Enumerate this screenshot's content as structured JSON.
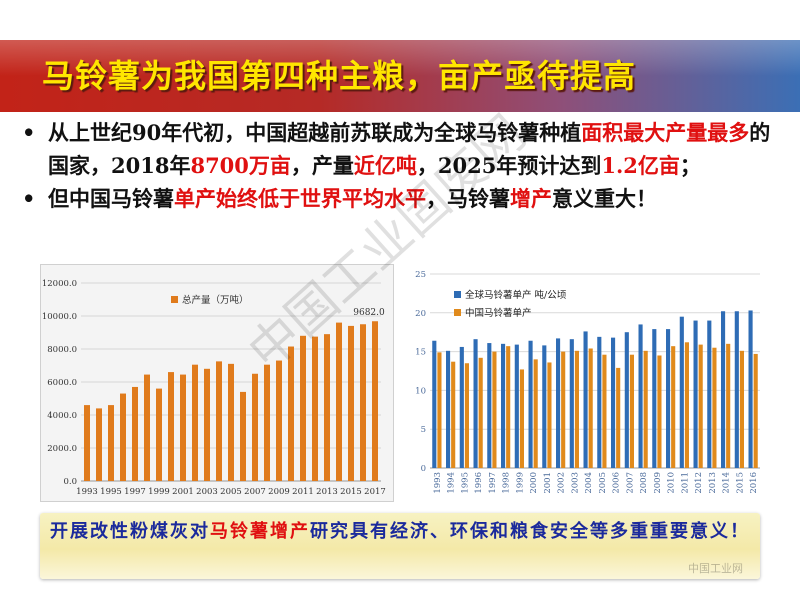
{
  "title": "马铃薯为我国第四种主粮，亩产亟待提高",
  "bullets": [
    {
      "dot": "•",
      "segments": [
        {
          "text": "从上世纪90年代初，中国超越前苏联成为全球马铃薯种植",
          "red": false
        },
        {
          "text": "面积最大产量最多",
          "red": true
        },
        {
          "text": "的国家，2018年",
          "red": false
        },
        {
          "text": "8700万亩",
          "red": true
        },
        {
          "text": "，产量",
          "red": false
        },
        {
          "text": "近亿吨",
          "red": true
        },
        {
          "text": "，2025年预计达到",
          "red": false
        },
        {
          "text": "1.2亿亩",
          "red": true
        },
        {
          "text": "；",
          "red": false
        }
      ]
    },
    {
      "dot": "•",
      "segments": [
        {
          "text": "但中国马铃薯",
          "red": false
        },
        {
          "text": "单产始终低于世界平均水平",
          "red": true
        },
        {
          "text": "，马铃薯",
          "red": false
        },
        {
          "text": "增产",
          "red": true
        },
        {
          "text": "意义重大！",
          "red": false
        }
      ]
    }
  ],
  "chart_data": [
    {
      "type": "bar",
      "title": "",
      "legend": [
        "总产量（万吨）"
      ],
      "legend_position": "top-center",
      "categories": [
        "1993",
        "1994",
        "1995",
        "1996",
        "1997",
        "1998",
        "1999",
        "2000",
        "2001",
        "2002",
        "2003",
        "2004",
        "2005",
        "2006",
        "2007",
        "2008",
        "2009",
        "2010",
        "2011",
        "2012",
        "2013",
        "2014",
        "2015",
        "2016",
        "2017"
      ],
      "x_tick_labels": [
        "1993",
        "1995",
        "1997",
        "1999",
        "2001",
        "2003",
        "2005",
        "2007",
        "2009",
        "2011",
        "2013",
        "2015",
        "2017"
      ],
      "series": [
        {
          "name": "总产量（万吨）",
          "color": "#e07b1c",
          "values": [
            4600,
            4400,
            4600,
            5300,
            5700,
            6450,
            5600,
            6600,
            6450,
            7050,
            6800,
            7250,
            7100,
            5400,
            6500,
            7050,
            7300,
            8150,
            8800,
            8750,
            8900,
            9600,
            9400,
            9500,
            9682
          ]
        }
      ],
      "data_labels": [
        {
          "category": "2017",
          "text": "9682.0"
        }
      ],
      "ylim": [
        0,
        12000
      ],
      "y_ticks": [
        "0.0",
        "2000.0",
        "4000.0",
        "6000.0",
        "8000.0",
        "10000.0",
        "12000.0"
      ],
      "grid": true
    },
    {
      "type": "bar",
      "title": "",
      "legend": [
        "全球马铃薯单产  吨/公顷",
        "中国马铃薯单产"
      ],
      "legend_position": "top-left",
      "categories": [
        "1993",
        "1994",
        "1995",
        "1996",
        "1997",
        "1998",
        "1999",
        "2000",
        "2001",
        "2002",
        "2003",
        "2004",
        "2005",
        "2006",
        "2007",
        "2008",
        "2009",
        "2010",
        "2011",
        "2012",
        "2013",
        "2014",
        "2015",
        "2016"
      ],
      "series": [
        {
          "name": "全球马铃薯单产  吨/公顷",
          "color": "#2e6cb5",
          "values": [
            16.4,
            15.1,
            15.6,
            16.6,
            16.1,
            16.0,
            15.9,
            16.4,
            15.8,
            16.7,
            16.6,
            17.6,
            16.9,
            16.8,
            17.5,
            18.5,
            17.9,
            17.9,
            19.5,
            19.0,
            19.0,
            20.2,
            20.2,
            20.3
          ]
        },
        {
          "name": "中国马铃薯单产",
          "color": "#e08a1c",
          "values": [
            14.9,
            13.7,
            13.5,
            14.2,
            15.0,
            15.7,
            12.7,
            14.0,
            13.6,
            15.0,
            15.1,
            15.4,
            14.6,
            12.9,
            14.6,
            15.1,
            14.5,
            15.7,
            16.2,
            15.9,
            15.5,
            16.0,
            15.1,
            14.7
          ]
        }
      ],
      "ylim": [
        0,
        25
      ],
      "y_ticks": [
        "0",
        "5",
        "10",
        "15",
        "20",
        "25"
      ],
      "grid": true
    }
  ],
  "watermark": "中国工业固废网",
  "corner_mark": "中国工业网",
  "bottom": {
    "segments": [
      {
        "text": "开展改性粉煤灰对",
        "red": false
      },
      {
        "text": "马铃薯增产",
        "red": true
      },
      {
        "text": "研究具有经济、环保和粮食安全等多重重要意义！",
        "red": false
      }
    ]
  }
}
